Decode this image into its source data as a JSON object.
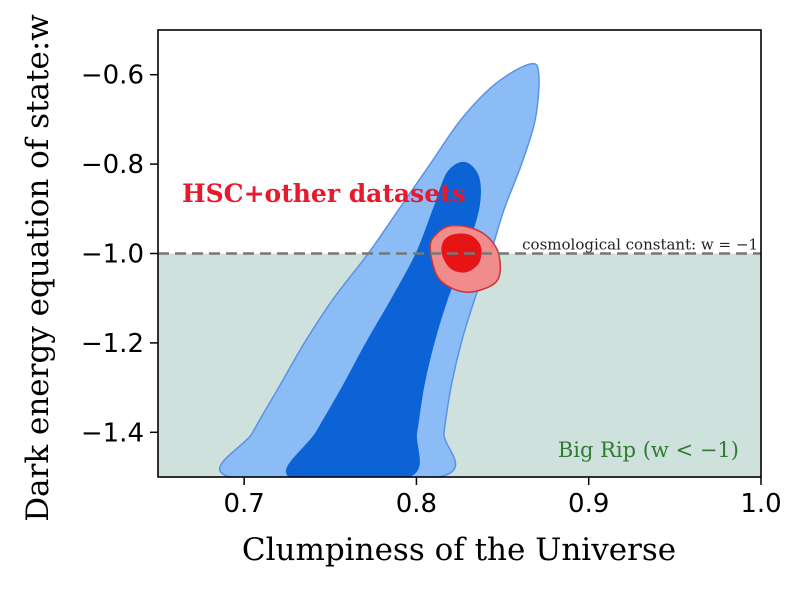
{
  "chart_data": {
    "type": "contour",
    "xlabel": "Clumpiness of the Universe",
    "ylabel": "Dark energy equation of state:w",
    "xlim": [
      0.65,
      1.0
    ],
    "ylim": [
      -1.5,
      -0.5
    ],
    "xticks": [
      "0.7",
      "0.8",
      "0.9",
      "1.0"
    ],
    "yticks": [
      "−1.4",
      "−1.2",
      "−1.0",
      "−0.8",
      "−0.6"
    ],
    "xtick_values": [
      0.7,
      0.8,
      0.9,
      1.0
    ],
    "ytick_values": [
      -1.4,
      -1.2,
      -1.0,
      -0.8,
      -0.6
    ],
    "grid": false,
    "reference_line": {
      "y": -1.0,
      "style": "dashed",
      "label": "cosmological constant: w = −1"
    },
    "shaded_region": {
      "y_range": [
        -1.5,
        -1.0
      ],
      "label": "Big Rip (w < −1)",
      "color": "#cfe1dc",
      "label_color": "#2e7d32"
    },
    "series": [
      {
        "name": "",
        "kind": "contour-95",
        "color": "#8bbcf5",
        "edge": "#5a93e6",
        "points": [
          [
            0.692,
            -1.5
          ],
          [
            0.705,
            -1.4
          ],
          [
            0.72,
            -1.3
          ],
          [
            0.735,
            -1.2
          ],
          [
            0.752,
            -1.1
          ],
          [
            0.772,
            -1.0
          ],
          [
            0.79,
            -0.9
          ],
          [
            0.808,
            -0.8
          ],
          [
            0.826,
            -0.7
          ],
          [
            0.846,
            -0.62
          ],
          [
            0.866,
            -0.576
          ],
          [
            0.871,
            -0.6
          ],
          [
            0.869,
            -0.7
          ],
          [
            0.861,
            -0.8
          ],
          [
            0.851,
            -0.9
          ],
          [
            0.843,
            -1.0
          ],
          [
            0.834,
            -1.1
          ],
          [
            0.826,
            -1.2
          ],
          [
            0.82,
            -1.3
          ],
          [
            0.816,
            -1.4
          ],
          [
            0.813,
            -1.5
          ]
        ]
      },
      {
        "name": "",
        "kind": "contour-68",
        "color": "#0b63d6",
        "edge": "#0b63d6",
        "points": [
          [
            0.727,
            -1.5
          ],
          [
            0.742,
            -1.4
          ],
          [
            0.757,
            -1.3
          ],
          [
            0.771,
            -1.2
          ],
          [
            0.786,
            -1.1
          ],
          [
            0.8,
            -1.0
          ],
          [
            0.81,
            -0.9
          ],
          [
            0.818,
            -0.82
          ],
          [
            0.828,
            -0.797
          ],
          [
            0.836,
            -0.83
          ],
          [
            0.836,
            -0.9
          ],
          [
            0.828,
            -1.0
          ],
          [
            0.818,
            -1.1
          ],
          [
            0.81,
            -1.2
          ],
          [
            0.804,
            -1.3
          ],
          [
            0.8,
            -1.4
          ],
          [
            0.795,
            -1.5
          ]
        ]
      },
      {
        "name": "HSC+other datasets",
        "kind": "contour-95",
        "color": "#f08c8c",
        "edge": "#d23232",
        "points": [
          [
            0.808,
            -0.985
          ],
          [
            0.812,
            -0.955
          ],
          [
            0.82,
            -0.938
          ],
          [
            0.832,
            -0.943
          ],
          [
            0.842,
            -0.965
          ],
          [
            0.848,
            -1.005
          ],
          [
            0.847,
            -1.06
          ],
          [
            0.834,
            -1.085
          ],
          [
            0.822,
            -1.08
          ],
          [
            0.812,
            -1.05
          ]
        ]
      },
      {
        "name": "HSC+other datasets",
        "kind": "contour-68",
        "color": "#e61414",
        "edge": "#e61414",
        "points": [
          [
            0.815,
            -0.985
          ],
          [
            0.818,
            -0.965
          ],
          [
            0.825,
            -0.957
          ],
          [
            0.832,
            -0.962
          ],
          [
            0.837,
            -0.985
          ],
          [
            0.836,
            -1.02
          ],
          [
            0.829,
            -1.04
          ],
          [
            0.821,
            -1.035
          ],
          [
            0.816,
            -1.01
          ]
        ]
      }
    ],
    "series_label_color": "#e8192c"
  }
}
